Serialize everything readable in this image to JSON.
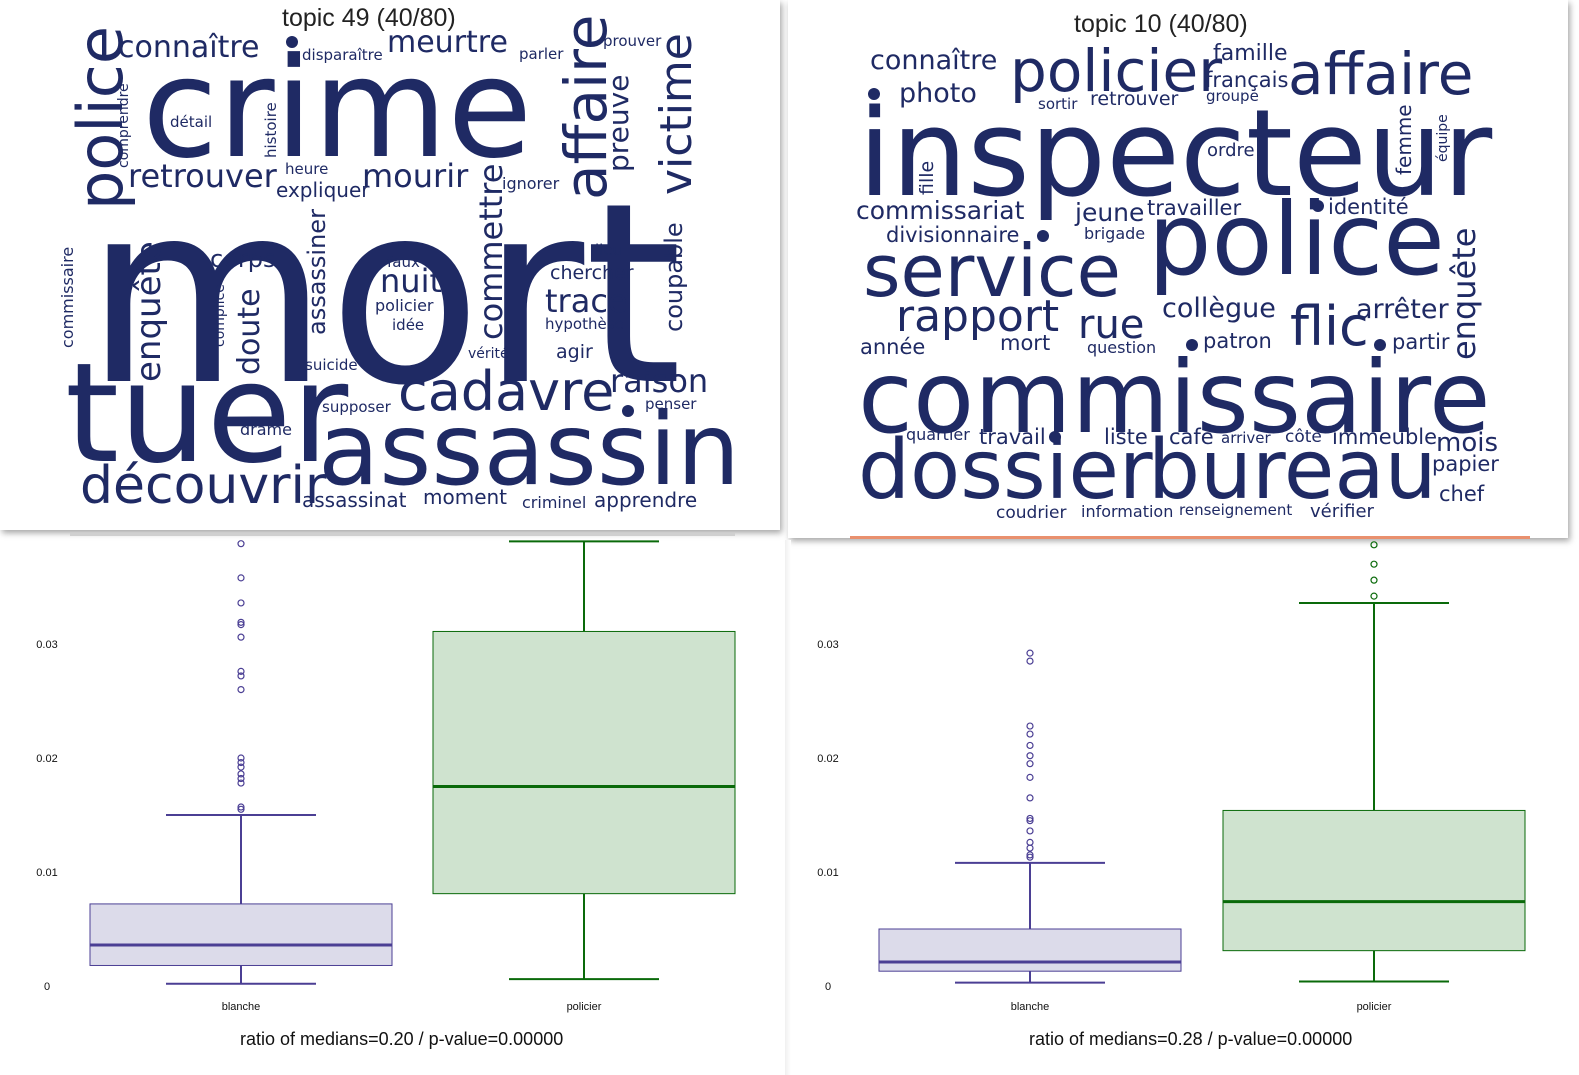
{
  "wordclouds": [
    {
      "title": "topic 49 (40/80)",
      "words": [
        "mort",
        "crime",
        "tuer",
        "assassin",
        "police",
        "découvrir",
        "cadavre",
        "affaire",
        "victime",
        "meurtre",
        "connaître",
        "enquête",
        "retrouver",
        "mourir",
        "commettre",
        "doute",
        "trace",
        "nuit",
        "raison",
        "coupable",
        "preuve",
        "assassiner",
        "corps",
        "expliquer",
        "assassinat",
        "moment",
        "apprendre",
        "criminel",
        "chercher",
        "hypothèse",
        "agir",
        "commissaire",
        "comprendre",
        "détail",
        "histoire",
        "heure",
        "disparaître",
        "parler",
        "prouver",
        "ignorer",
        "lieu",
        "faux",
        "policier",
        "idée",
        "vérité",
        "complice",
        "suicide",
        "supposer",
        "penser",
        "drame"
      ]
    },
    {
      "title": "topic 10 (40/80)",
      "words": [
        "inspecteur",
        "commissaire",
        "police",
        "dossier",
        "bureau",
        "service",
        "policier",
        "affaire",
        "rapport",
        "flic",
        "rue",
        "enquête",
        "connaître",
        "photo",
        "famille",
        "français",
        "sortir",
        "retrouver",
        "groupe",
        "femme",
        "équipe",
        "ordre",
        "fille",
        "commissariat",
        "jeune",
        "travailler",
        "identité",
        "divisionnaire",
        "brigade",
        "collègue",
        "arrêter",
        "année",
        "mort",
        "question",
        "patron",
        "partir",
        "quartier",
        "travail",
        "liste",
        "café",
        "arriver",
        "côté",
        "immeuble",
        "mois",
        "papier",
        "chef",
        "coudrier",
        "information",
        "renseignement",
        "vérifier"
      ]
    }
  ],
  "chart_data": [
    {
      "type": "box",
      "categories": [
        "blanche",
        "policier"
      ],
      "y_ticks": [
        "0",
        "0.01",
        "0.02",
        "0.03"
      ],
      "ylim": [
        0,
        0.039
      ],
      "caption": "ratio of medians=0.20 / p-value=0.00000",
      "boxes": [
        {
          "category": "blanche",
          "whisker_low": 0.0002,
          "q1": 0.0018,
          "median": 0.0036,
          "q3": 0.0072,
          "whisker_high": 0.015,
          "outliers": [
            0.0155,
            0.0157,
            0.0178,
            0.0182,
            0.0186,
            0.0192,
            0.0196,
            0.02,
            0.026,
            0.0272,
            0.0276,
            0.0306,
            0.0317,
            0.0319,
            0.0336,
            0.0358,
            0.0388
          ],
          "color": "#4b3f94",
          "fill": "#dcdbea"
        },
        {
          "category": "policier",
          "whisker_low": 0.0006,
          "q1": 0.0081,
          "median": 0.0175,
          "q3": 0.0311,
          "whisker_high": 0.039,
          "outliers": [],
          "color": "#0a6a0a",
          "fill": "#cfe3cf"
        }
      ]
    },
    {
      "type": "box",
      "categories": [
        "blanche",
        "policier"
      ],
      "y_ticks": [
        "0",
        "0.01",
        "0.02",
        "0.03"
      ],
      "ylim": [
        0,
        0.039
      ],
      "caption": "ratio of medians=0.28 / p-value=0.00000",
      "boxes": [
        {
          "category": "blanche",
          "whisker_low": 0.0003,
          "q1": 0.0013,
          "median": 0.0021,
          "q3": 0.005,
          "whisker_high": 0.0108,
          "outliers": [
            0.0113,
            0.0115,
            0.0121,
            0.0126,
            0.0136,
            0.0145,
            0.0147,
            0.0165,
            0.0183,
            0.0195,
            0.0202,
            0.0211,
            0.0221,
            0.0228,
            0.0285,
            0.0292
          ],
          "color": "#4b3f94",
          "fill": "#dcdbea"
        },
        {
          "category": "policier",
          "whisker_low": 0.0004,
          "q1": 0.0031,
          "median": 0.0074,
          "q3": 0.0154,
          "whisker_high": 0.0336,
          "outliers": [
            0.0342,
            0.0356,
            0.037,
            0.0387
          ],
          "color": "#0a6a0a",
          "fill": "#cfe3cf"
        }
      ]
    }
  ]
}
